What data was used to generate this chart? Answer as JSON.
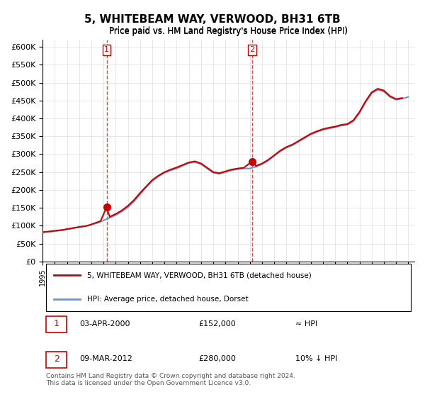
{
  "title": "5, WHITEBEAM WAY, VERWOOD, BH31 6TB",
  "subtitle": "Price paid vs. HM Land Registry's House Price Index (HPI)",
  "ylabel": "",
  "ylim": [
    0,
    620000
  ],
  "yticks": [
    0,
    50000,
    100000,
    150000,
    200000,
    250000,
    300000,
    350000,
    400000,
    450000,
    500000,
    550000,
    600000
  ],
  "xlim_start": 1995.0,
  "xlim_end": 2025.5,
  "legend_line1": "5, WHITEBEAM WAY, VERWOOD, BH31 6TB (detached house)",
  "legend_line2": "HPI: Average price, detached house, Dorset",
  "transaction1_label": "1",
  "transaction1_date": "03-APR-2000",
  "transaction1_price": "£152,000",
  "transaction1_hpi": "≈ HPI",
  "transaction2_label": "2",
  "transaction2_date": "09-MAR-2012",
  "transaction2_price": "£280,000",
  "transaction2_hpi": "10% ↓ HPI",
  "footnote": "Contains HM Land Registry data © Crown copyright and database right 2024.\nThis data is licensed under the Open Government Licence v3.0.",
  "line_color_red": "#cc0000",
  "line_color_blue": "#6699cc",
  "marker_color_red": "#cc0000",
  "transaction1_x": 2000.25,
  "transaction1_y": 152000,
  "transaction2_x": 2012.19,
  "transaction2_y": 280000,
  "hpi_years": [
    1995,
    1995.5,
    1996,
    1996.5,
    1997,
    1997.5,
    1998,
    1998.5,
    1999,
    1999.5,
    2000,
    2000.5,
    2001,
    2001.5,
    2002,
    2002.5,
    2003,
    2003.5,
    2004,
    2004.5,
    2005,
    2005.5,
    2006,
    2006.5,
    2007,
    2007.5,
    2008,
    2008.5,
    2009,
    2009.5,
    2010,
    2010.5,
    2011,
    2011.5,
    2012,
    2012.5,
    2013,
    2013.5,
    2014,
    2014.5,
    2015,
    2015.5,
    2016,
    2016.5,
    2017,
    2017.5,
    2018,
    2018.5,
    2019,
    2019.5,
    2020,
    2020.5,
    2021,
    2021.5,
    2022,
    2022.5,
    2023,
    2023.5,
    2024,
    2024.5,
    2025
  ],
  "hpi_values": [
    82000,
    83000,
    85000,
    87000,
    90000,
    93000,
    96000,
    99000,
    103000,
    108000,
    115000,
    122000,
    130000,
    140000,
    152000,
    168000,
    188000,
    208000,
    225000,
    238000,
    248000,
    255000,
    260000,
    268000,
    275000,
    278000,
    272000,
    260000,
    248000,
    245000,
    250000,
    255000,
    258000,
    260000,
    260000,
    265000,
    272000,
    282000,
    295000,
    308000,
    318000,
    325000,
    335000,
    345000,
    355000,
    362000,
    368000,
    372000,
    375000,
    380000,
    382000,
    392000,
    415000,
    445000,
    470000,
    480000,
    475000,
    460000,
    452000,
    455000,
    460000
  ],
  "price_years": [
    1995.0,
    1995.25,
    1995.5,
    1995.75,
    1996.0,
    1996.25,
    1996.5,
    1996.75,
    1997.0,
    1997.25,
    1997.5,
    1997.75,
    1998.0,
    1998.25,
    1998.5,
    1998.75,
    1999.0,
    1999.25,
    1999.5,
    1999.75,
    2000.25,
    2000.5,
    2001.0,
    2001.5,
    2002.0,
    2002.5,
    2003.0,
    2003.5,
    2004.0,
    2004.5,
    2005.0,
    2005.5,
    2006.0,
    2006.5,
    2007.0,
    2007.5,
    2008.0,
    2008.5,
    2009.0,
    2009.5,
    2010.0,
    2010.5,
    2011.0,
    2011.5,
    2012.19,
    2012.5,
    2013.0,
    2013.5,
    2014.0,
    2014.5,
    2015.0,
    2015.5,
    2016.0,
    2016.5,
    2017.0,
    2017.5,
    2018.0,
    2018.5,
    2019.0,
    2019.5,
    2020.0,
    2020.5,
    2021.0,
    2021.5,
    2022.0,
    2022.5,
    2023.0,
    2023.5,
    2024.0,
    2024.5
  ],
  "price_values": [
    82000,
    83000,
    84000,
    85000,
    86000,
    87000,
    88000,
    89000,
    91000,
    92000,
    94000,
    95000,
    97000,
    98000,
    99000,
    101000,
    104000,
    107000,
    110000,
    113000,
    152000,
    125000,
    133000,
    143000,
    156000,
    172000,
    192000,
    210000,
    228000,
    240000,
    250000,
    257000,
    263000,
    270000,
    277000,
    280000,
    274000,
    262000,
    250000,
    247000,
    252000,
    257000,
    260000,
    262000,
    280000,
    267000,
    274000,
    284000,
    297000,
    310000,
    320000,
    327000,
    337000,
    347000,
    357000,
    364000,
    370000,
    374000,
    377000,
    382000,
    384000,
    395000,
    418000,
    448000,
    473000,
    483000,
    478000,
    462000,
    454000,
    457000
  ]
}
